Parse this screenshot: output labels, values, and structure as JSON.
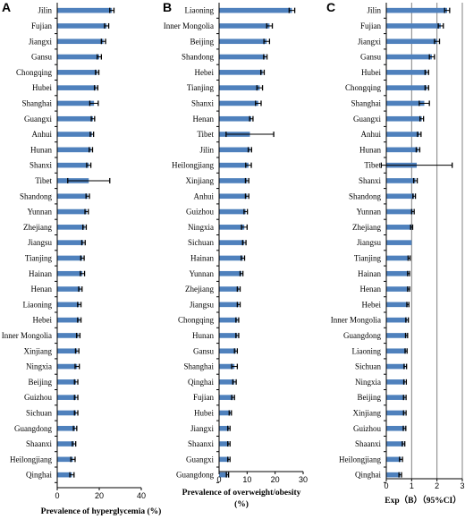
{
  "colors": {
    "bar": "#4F81BD",
    "axis": "#000000",
    "grid": "#808080",
    "errorbar": "#000000"
  },
  "chart_data": [
    {
      "panel": "A",
      "type": "bar",
      "orientation": "horizontal",
      "xlabel": "Prevalence of hyperglycemia (%)",
      "xlim": [
        0,
        40
      ],
      "xticks": [
        0,
        20,
        40
      ],
      "grid": false,
      "categories": [
        "Jilin",
        "Fujian",
        "Jiangxi",
        "Gansu",
        "Chongqing",
        "Hubei",
        "Shanghai",
        "Guangxi",
        "Anhui",
        "Hunan",
        "Shanxi",
        "Tibet",
        "Shandong",
        "Yunnan",
        "Zhejiang",
        "Jiangsu",
        "Tianjing",
        "Hainan",
        "Henan",
        "Liaoning",
        "Hebei",
        "Inner Mongolia",
        "Xinjiang",
        "Ningxia",
        "Beijing",
        "Guizhou",
        "Sichuan",
        "Guangdong",
        "Shaanxi",
        "Heilongjiang",
        "Qinghai"
      ],
      "values": [
        26,
        23.5,
        22,
        20,
        19,
        18.5,
        17.5,
        17,
        16.5,
        16,
        15,
        15,
        14.5,
        14,
        13,
        12.5,
        12,
        12,
        11,
        10.5,
        10.5,
        10,
        9.5,
        9.5,
        9,
        9,
        9,
        8.5,
        8,
        7.5,
        7
      ],
      "errors": [
        1,
        1,
        1,
        1,
        0.8,
        0.8,
        2,
        0.8,
        0.8,
        0.8,
        1,
        10,
        0.8,
        0.8,
        0.8,
        0.8,
        0.8,
        1,
        0.8,
        0.8,
        0.8,
        0.8,
        0.8,
        1,
        0.8,
        0.8,
        0.8,
        0.8,
        0.8,
        1,
        1
      ]
    },
    {
      "panel": "B",
      "type": "bar",
      "orientation": "horizontal",
      "xlabel": "Prevalence of overweight/obesity (%)",
      "xlim": [
        0,
        30
      ],
      "xticks": [
        0,
        10,
        20,
        30
      ],
      "grid": false,
      "categories": [
        "Liaoning",
        "Inner Mongolia",
        "Beijing",
        "Shandong",
        "Hebei",
        "Tianjing",
        "Shanxi",
        "Henan",
        "Tibet",
        "Jilin",
        "Heilongjiang",
        "Xinjiang",
        "Anhui",
        "Guizhou",
        "Ningxia",
        "Sichuan",
        "Hainan",
        "Yunnan",
        "Zhejiang",
        "Jiangsu",
        "Chongqing",
        "Hunan",
        "Gansu",
        "Shanghai",
        "Qinghai",
        "Fujian",
        "Hubei",
        "Jiangxi",
        "Shaanxi",
        "Guangxi",
        "Guangdong"
      ],
      "values": [
        26,
        18,
        17,
        16.5,
        15.5,
        14.5,
        14,
        11.5,
        11,
        11,
        10.5,
        10,
        10,
        9.5,
        9,
        9,
        8.5,
        8,
        7,
        7,
        6.5,
        6.5,
        6,
        5.5,
        5.5,
        5,
        4,
        3.5,
        3.5,
        3.5,
        3
      ],
      "errors": [
        1,
        1,
        1,
        0.6,
        0.6,
        1,
        1,
        0.6,
        8.5,
        0.6,
        1,
        0.6,
        0.6,
        0.6,
        1,
        0.6,
        0.6,
        0.5,
        0.5,
        0.5,
        0.5,
        0.5,
        0.5,
        1,
        0.6,
        0.5,
        0.4,
        0.4,
        0.4,
        0.4,
        0.4
      ]
    },
    {
      "panel": "C",
      "type": "bar",
      "orientation": "horizontal",
      "xlabel": "Exp（B）（95%CI）",
      "xlim": [
        0,
        3
      ],
      "xticks": [
        0,
        1,
        2,
        3
      ],
      "grid": true,
      "categories": [
        "Jilin",
        "Fujian",
        "Jiangxi",
        "Gansu",
        "Hubei",
        "Chongqing",
        "Shanghai",
        "Guangxi",
        "Anhui",
        "Hunan",
        "Tibet",
        "Shanxi",
        "Shandong",
        "Yunnan",
        "Zhejiang",
        "Jiangsu",
        "Tianjing",
        "Hainan",
        "Henan",
        "Hebei",
        "Inner Mongolia",
        "Guangdong",
        "Liaoning",
        "Sichuan",
        "Ningxia",
        "Beijing",
        "Xinjiang",
        "Guizhou",
        "Shaanxi",
        "Heilongjiang",
        "Qinghai"
      ],
      "values": [
        2.4,
        2.15,
        2.0,
        1.8,
        1.6,
        1.6,
        1.5,
        1.4,
        1.3,
        1.25,
        1.2,
        1.15,
        1.1,
        1.05,
        1.0,
        1.0,
        0.9,
        0.88,
        0.88,
        0.85,
        0.82,
        0.8,
        0.78,
        0.75,
        0.74,
        0.73,
        0.73,
        0.72,
        0.68,
        0.58,
        0.55
      ],
      "errors": [
        0.1,
        0.1,
        0.1,
        0.1,
        0.07,
        0.07,
        0.2,
        0.07,
        0.07,
        0.07,
        1.4,
        0.07,
        0.05,
        0.05,
        0.04,
        0,
        0.04,
        0.04,
        0.04,
        0.04,
        0.05,
        0.04,
        0.04,
        0.05,
        0.05,
        0.05,
        0.05,
        0.05,
        0.05,
        0.06,
        0.05
      ]
    }
  ]
}
